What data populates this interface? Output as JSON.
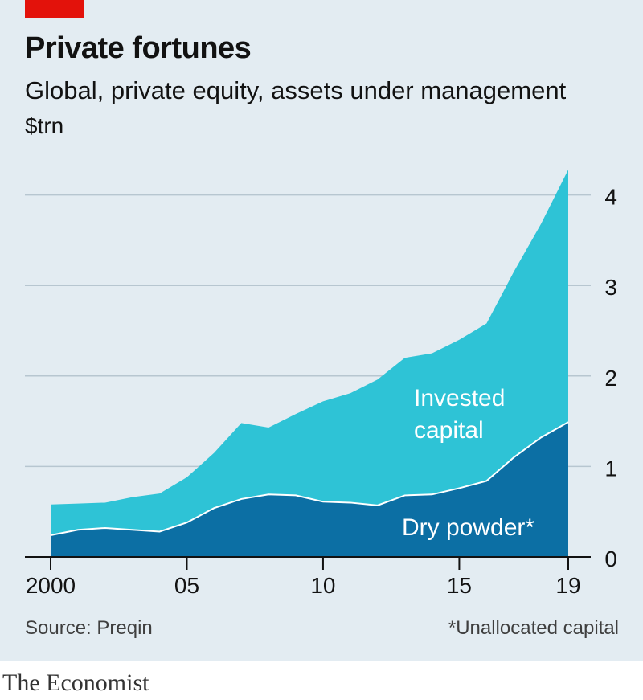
{
  "title": "Private fortunes",
  "subtitle": "Global, private equity, assets under management",
  "unit": "$trn",
  "source": "Source: Preqin",
  "footnote": "*Unallocated capital",
  "logo": "The Economist",
  "colors": {
    "background": "#e3ecf2",
    "brand_red": "#e3120b",
    "invested_capital": "#2ec3d6",
    "dry_powder": "#0c6fa4"
  },
  "chart_data": {
    "type": "area",
    "stacked": true,
    "x": [
      2000,
      2001,
      2002,
      2003,
      2004,
      2005,
      2006,
      2007,
      2008,
      2009,
      2010,
      2011,
      2012,
      2013,
      2014,
      2015,
      2016,
      2017,
      2018,
      2019
    ],
    "xticks": [
      2000,
      2005,
      2010,
      2015,
      2019
    ],
    "xtick_labels": [
      "2000",
      "05",
      "10",
      "15",
      "19"
    ],
    "yticks": [
      0,
      1,
      2,
      3,
      4
    ],
    "ytick_labels": [
      "0",
      "1",
      "2",
      "3",
      "4"
    ],
    "ylim": [
      0,
      4.3
    ],
    "xlim": [
      2000,
      2019
    ],
    "grid": true,
    "series": [
      {
        "name": "Dry powder*",
        "color": "#0c6fa4",
        "values": [
          0.24,
          0.3,
          0.32,
          0.3,
          0.28,
          0.38,
          0.54,
          0.64,
          0.69,
          0.68,
          0.61,
          0.6,
          0.57,
          0.68,
          0.69,
          0.76,
          0.84,
          1.1,
          1.32,
          1.49
        ]
      },
      {
        "name": "Invested capital",
        "label_lines": [
          "Invested",
          "capital"
        ],
        "color": "#2ec3d6",
        "values": [
          0.34,
          0.29,
          0.28,
          0.36,
          0.42,
          0.5,
          0.61,
          0.84,
          0.74,
          0.9,
          1.11,
          1.21,
          1.39,
          1.52,
          1.56,
          1.64,
          1.74,
          2.05,
          2.36,
          2.79
        ]
      }
    ]
  }
}
